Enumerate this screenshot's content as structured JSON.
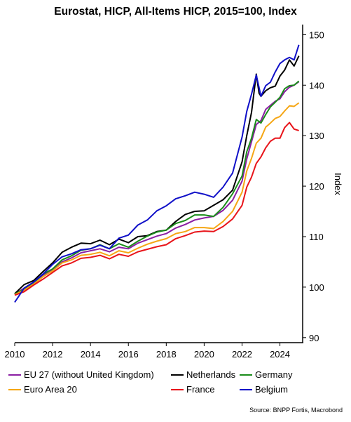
{
  "chart_data": {
    "type": "line",
    "title": "Eurostat, HICP, All-Items HICP, 2015=100, Index",
    "ylabel": "Index",
    "xlim": [
      2010,
      2025.2
    ],
    "ylim": [
      89,
      152
    ],
    "xticks": [
      2010,
      2012,
      2014,
      2016,
      2018,
      2020,
      2022,
      2024
    ],
    "yticks": [
      90,
      100,
      110,
      120,
      130,
      140,
      150
    ],
    "x_tick_labels": [
      "2010",
      "2012",
      "2014",
      "2016",
      "2018",
      "2020",
      "2022",
      "2024"
    ],
    "y_tick_labels": [
      "90",
      "100",
      "110",
      "120",
      "130",
      "140",
      "150"
    ],
    "legend_position": "bottom",
    "grid": false,
    "source": "Source: BNPP Fortis, Macrobond",
    "series": [
      {
        "name": "EU 27 (without United Kingdom)",
        "color": "#8B1FA3",
        "x": [
          2010.0,
          2010.5,
          2011.0,
          2011.5,
          2012.0,
          2012.5,
          2013.0,
          2013.5,
          2014.0,
          2014.5,
          2015.0,
          2015.5,
          2016.0,
          2016.5,
          2017.0,
          2017.5,
          2018.0,
          2018.5,
          2019.0,
          2019.5,
          2020.0,
          2020.5,
          2021.0,
          2021.5,
          2022.0,
          2022.25,
          2022.5,
          2022.75,
          2023.0,
          2023.25,
          2023.5,
          2023.75,
          2024.0,
          2024.25,
          2024.5,
          2024.75,
          2025.0
        ],
        "y": [
          98.6,
          99.8,
          101.0,
          102.4,
          103.5,
          105.0,
          105.8,
          106.8,
          107.2,
          107.6,
          107.0,
          107.9,
          107.6,
          108.7,
          109.4,
          110.1,
          110.6,
          111.7,
          112.4,
          113.3,
          113.7,
          114.0,
          115.2,
          117.2,
          121.0,
          125.4,
          128.8,
          132.2,
          133.0,
          135.2,
          136.0,
          136.8,
          137.3,
          138.7,
          139.6,
          140.0,
          140.7
        ]
      },
      {
        "name": "Netherlands",
        "color": "#000000",
        "x": [
          2010.0,
          2010.5,
          2011.0,
          2011.5,
          2012.0,
          2012.5,
          2013.0,
          2013.5,
          2014.0,
          2014.5,
          2015.0,
          2015.5,
          2016.0,
          2016.5,
          2017.0,
          2017.5,
          2018.0,
          2018.5,
          2019.0,
          2019.5,
          2020.0,
          2020.5,
          2021.0,
          2021.5,
          2022.0,
          2022.25,
          2022.5,
          2022.75,
          2022.9,
          2023.0,
          2023.25,
          2023.5,
          2023.75,
          2024.0,
          2024.25,
          2024.5,
          2024.75,
          2025.0
        ],
        "y": [
          98.7,
          100.5,
          101.3,
          103.1,
          104.8,
          106.9,
          107.9,
          108.7,
          108.6,
          109.3,
          108.4,
          109.5,
          108.8,
          110.0,
          110.2,
          111.0,
          111.3,
          113.0,
          114.4,
          115.0,
          115.1,
          116.2,
          117.3,
          119.2,
          124.8,
          130.0,
          134.6,
          142.2,
          138.4,
          137.8,
          138.9,
          139.5,
          139.8,
          141.8,
          143.0,
          145.0,
          143.8,
          145.8
        ]
      },
      {
        "name": "Germany",
        "color": "#1A8C1A",
        "x": [
          2010.0,
          2010.5,
          2011.0,
          2011.5,
          2012.0,
          2012.5,
          2013.0,
          2013.5,
          2014.0,
          2014.5,
          2015.0,
          2015.5,
          2016.0,
          2016.5,
          2017.0,
          2017.5,
          2018.0,
          2018.5,
          2019.0,
          2019.5,
          2020.0,
          2020.5,
          2021.0,
          2021.5,
          2022.0,
          2022.25,
          2022.5,
          2022.75,
          2023.0,
          2023.25,
          2023.5,
          2023.75,
          2024.0,
          2024.25,
          2024.5,
          2024.75,
          2025.0
        ],
        "y": [
          98.6,
          99.6,
          100.8,
          102.6,
          103.6,
          105.4,
          106.2,
          107.3,
          107.6,
          108.4,
          107.6,
          108.6,
          107.9,
          109.1,
          110.1,
          110.9,
          111.3,
          112.6,
          113.2,
          114.3,
          114.3,
          114.0,
          115.8,
          118.5,
          122.0,
          126.8,
          129.5,
          133.2,
          132.5,
          134.2,
          135.7,
          136.6,
          137.6,
          139.3,
          139.9,
          140.0,
          140.8
        ]
      },
      {
        "name": "Euro Area 20",
        "color": "#F5A614",
        "x": [
          2010.0,
          2010.5,
          2011.0,
          2011.5,
          2012.0,
          2012.5,
          2013.0,
          2013.5,
          2014.0,
          2014.5,
          2015.0,
          2015.5,
          2016.0,
          2016.5,
          2017.0,
          2017.5,
          2018.0,
          2018.5,
          2019.0,
          2019.5,
          2020.0,
          2020.5,
          2021.0,
          2021.5,
          2022.0,
          2022.25,
          2022.5,
          2022.75,
          2023.0,
          2023.25,
          2023.5,
          2023.75,
          2024.0,
          2024.25,
          2024.5,
          2024.75,
          2025.0
        ],
        "y": [
          98.5,
          99.4,
          100.6,
          102.1,
          103.2,
          104.8,
          105.4,
          106.3,
          106.5,
          106.9,
          106.2,
          107.2,
          106.8,
          107.7,
          108.5,
          109.1,
          109.6,
          110.6,
          111.0,
          111.8,
          111.8,
          111.6,
          113.0,
          115.0,
          118.8,
          123.0,
          125.5,
          128.5,
          129.5,
          131.7,
          132.5,
          133.4,
          133.8,
          134.9,
          135.9,
          135.8,
          136.5
        ]
      },
      {
        "name": "France",
        "color": "#E8141A",
        "x": [
          2010.0,
          2010.5,
          2011.0,
          2011.5,
          2012.0,
          2012.5,
          2013.0,
          2013.5,
          2014.0,
          2014.5,
          2015.0,
          2015.5,
          2016.0,
          2016.5,
          2017.0,
          2017.5,
          2018.0,
          2018.5,
          2019.0,
          2019.5,
          2020.0,
          2020.5,
          2021.0,
          2021.5,
          2022.0,
          2022.25,
          2022.5,
          2022.75,
          2023.0,
          2023.25,
          2023.5,
          2023.75,
          2024.0,
          2024.25,
          2024.5,
          2024.75,
          2025.0
        ],
        "y": [
          98.4,
          99.1,
          100.4,
          101.6,
          102.9,
          104.2,
          104.8,
          105.7,
          105.9,
          106.3,
          105.6,
          106.5,
          106.1,
          107.0,
          107.5,
          108.0,
          108.4,
          109.6,
          110.2,
          110.9,
          111.1,
          111.0,
          112.0,
          113.5,
          116.2,
          119.8,
          121.8,
          124.5,
          125.8,
          127.6,
          128.9,
          129.5,
          129.5,
          131.6,
          132.6,
          131.3,
          131.0
        ]
      },
      {
        "name": "Belgium",
        "color": "#1010C8",
        "x": [
          2010.0,
          2010.5,
          2011.0,
          2011.5,
          2012.0,
          2012.5,
          2013.0,
          2013.5,
          2014.0,
          2014.5,
          2015.0,
          2015.5,
          2016.0,
          2016.5,
          2017.0,
          2017.5,
          2018.0,
          2018.5,
          2019.0,
          2019.5,
          2020.0,
          2020.5,
          2021.0,
          2021.5,
          2022.0,
          2022.25,
          2022.5,
          2022.75,
          2023.0,
          2023.25,
          2023.5,
          2023.75,
          2024.0,
          2024.25,
          2024.5,
          2024.75,
          2025.0
        ],
        "y": [
          97.0,
          99.8,
          101.0,
          102.6,
          104.5,
          106.0,
          106.6,
          107.4,
          107.6,
          108.3,
          107.6,
          109.7,
          110.3,
          112.3,
          113.3,
          115.1,
          116.1,
          117.5,
          118.1,
          118.8,
          118.4,
          117.8,
          119.8,
          122.6,
          129.7,
          134.8,
          138.2,
          142.0,
          137.8,
          139.9,
          140.6,
          142.6,
          144.3,
          145.0,
          145.5,
          145.0,
          148.0
        ]
      }
    ]
  }
}
